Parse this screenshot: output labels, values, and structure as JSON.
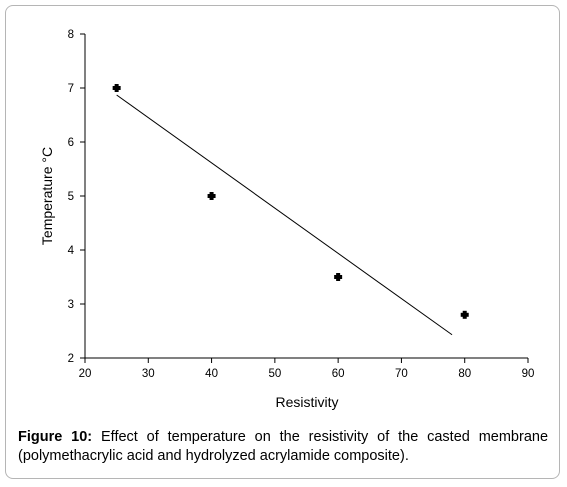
{
  "chart_data": {
    "type": "scatter",
    "xlabel": "Resistivity",
    "ylabel": "Temperature  °C",
    "xlim": [
      20,
      90
    ],
    "ylim": [
      2,
      8
    ],
    "xticks": [
      20,
      30,
      40,
      50,
      60,
      70,
      80,
      90
    ],
    "yticks": [
      2,
      3,
      4,
      5,
      6,
      7,
      8
    ],
    "grid": false,
    "points": [
      {
        "x": 25,
        "y": 7.0
      },
      {
        "x": 40,
        "y": 5.0
      },
      {
        "x": 60,
        "y": 3.5
      },
      {
        "x": 80,
        "y": 2.8
      }
    ],
    "trendline": {
      "x": [
        25,
        78
      ],
      "y": [
        6.87,
        2.43
      ]
    }
  },
  "caption": {
    "label": "Figure 10:",
    "text": " Effect of temperature on the resistivity of the casted membrane (polymethacrylic acid and hydrolyzed acrylamide composite)."
  }
}
